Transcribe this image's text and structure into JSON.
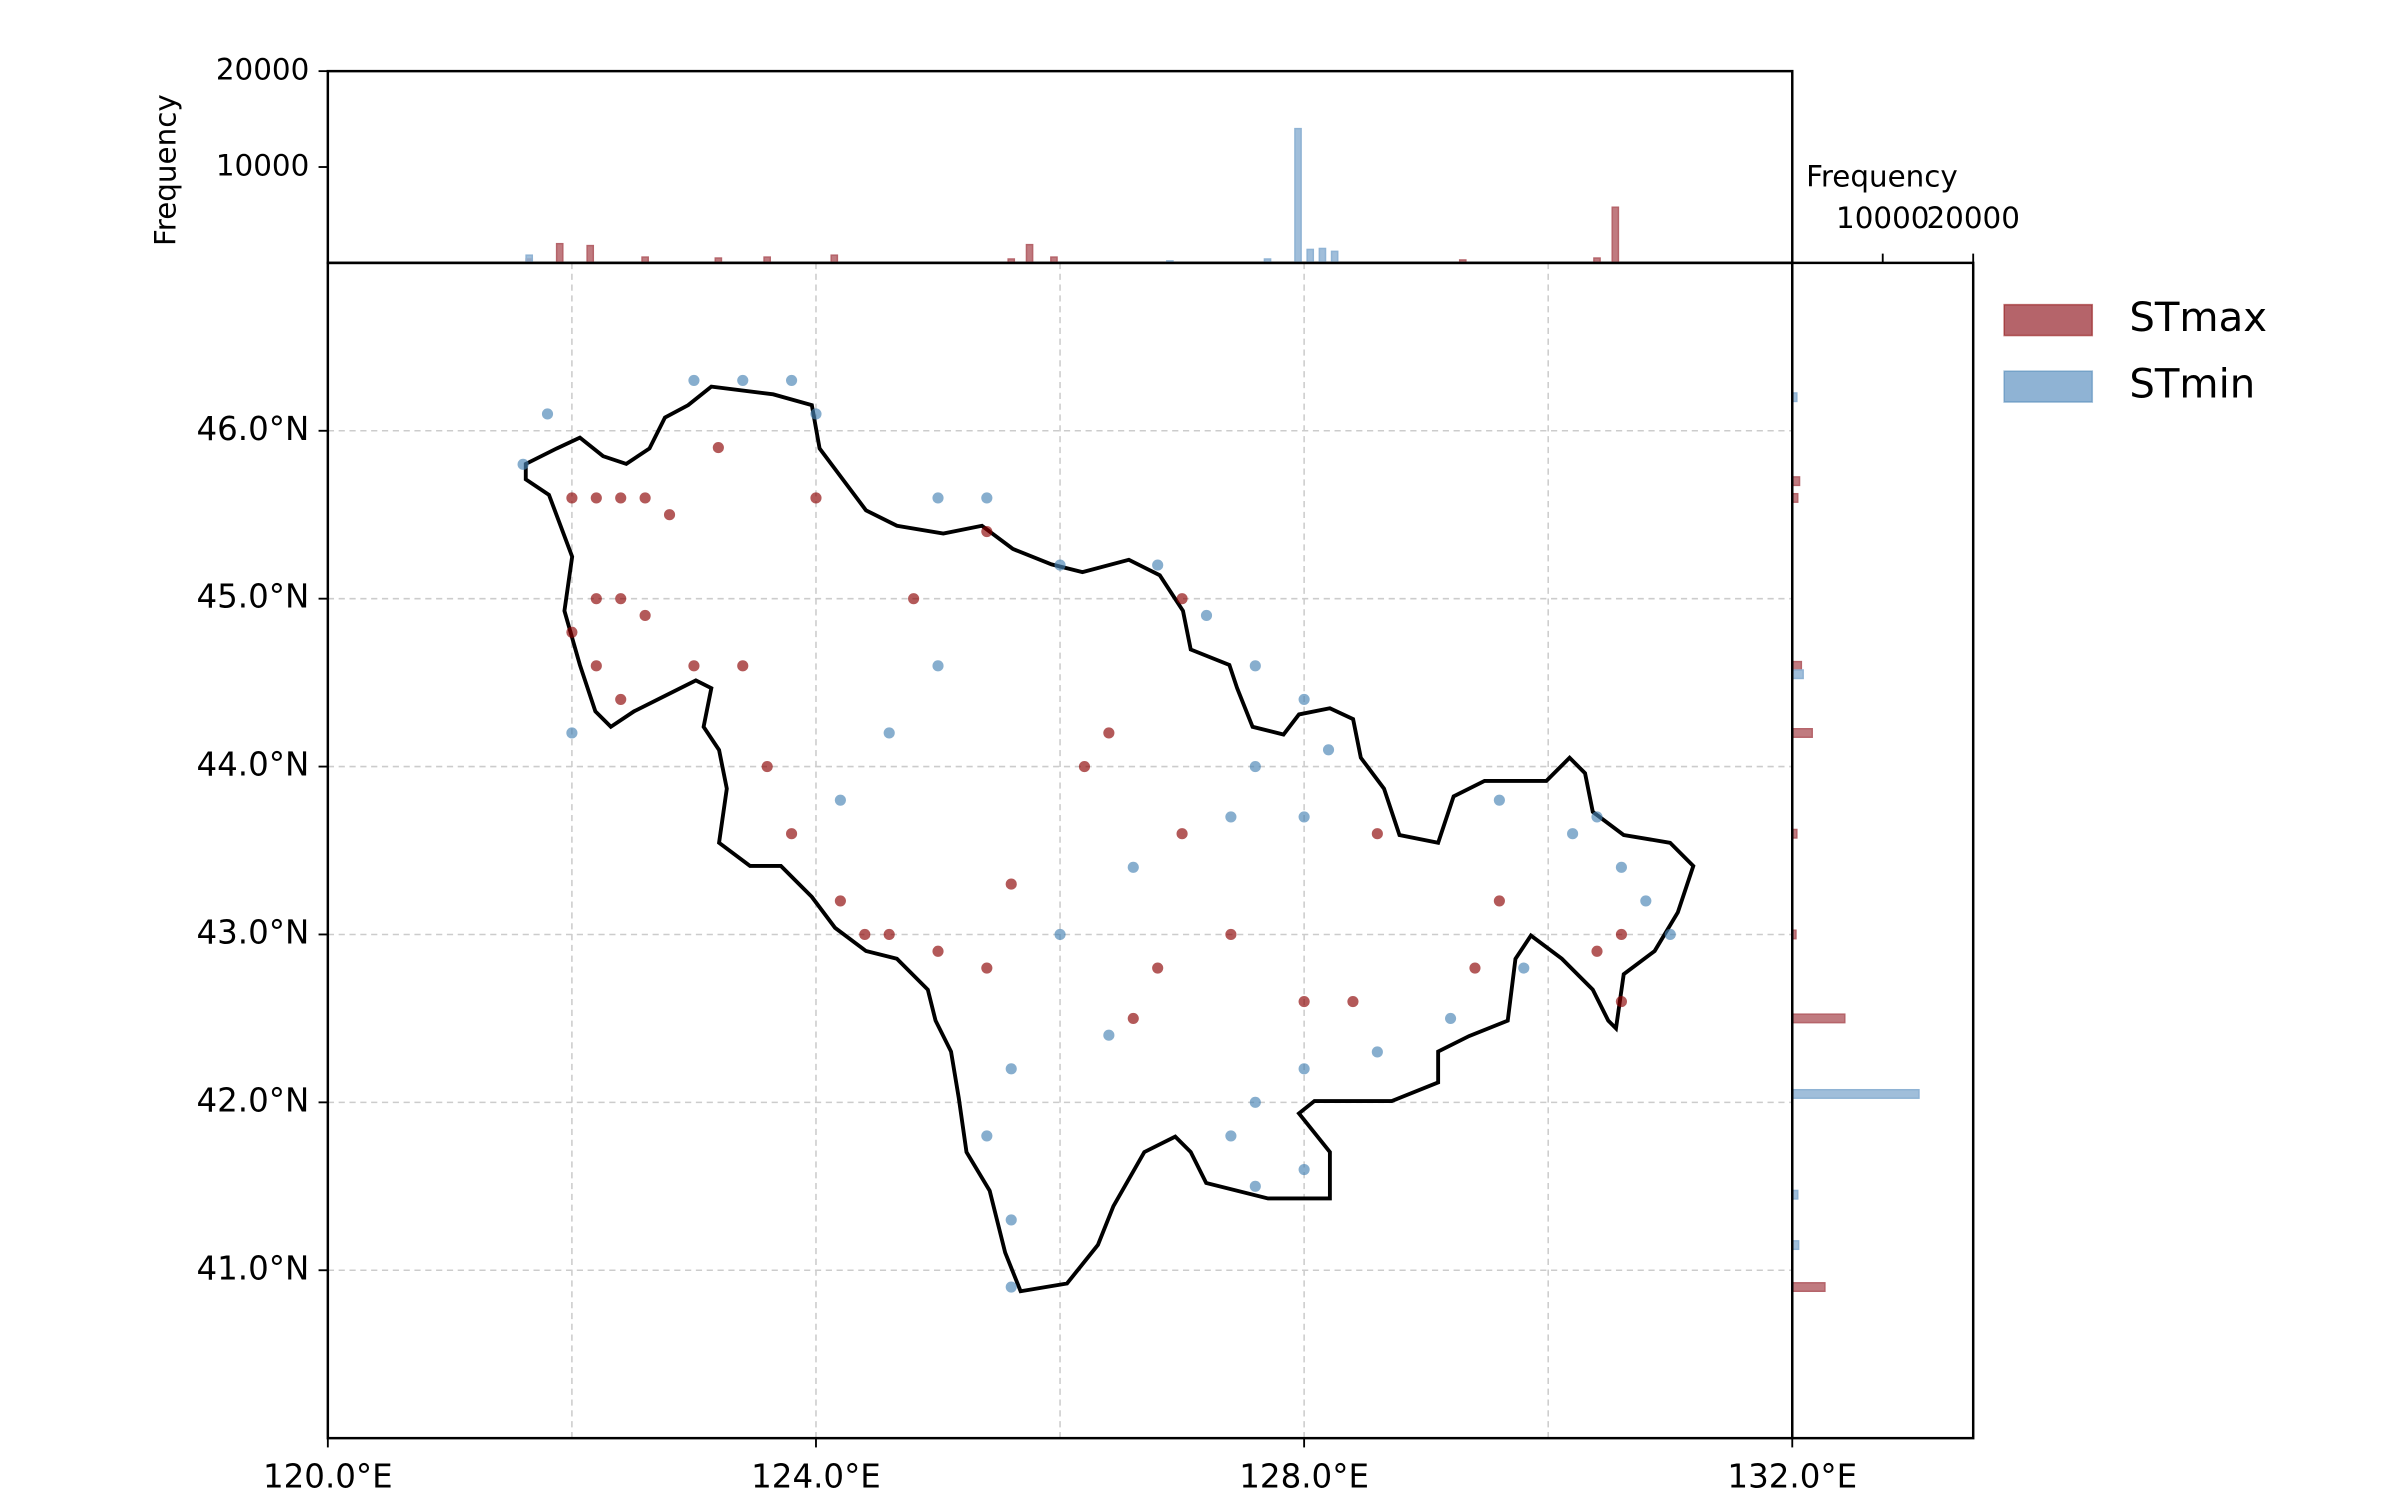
{
  "chart_data": [
    {
      "type": "scatter",
      "xlim": [
        120,
        132
      ],
      "ylim": [
        40,
        47
      ],
      "xticks": [
        {
          "value": 120,
          "label": "120.0°E"
        },
        {
          "value": 124,
          "label": "124.0°E"
        },
        {
          "value": 128,
          "label": "128.0°E"
        },
        {
          "value": 132,
          "label": "132.0°E"
        }
      ],
      "xgrid": [
        122,
        124,
        126,
        128,
        130
      ],
      "yticks": [
        {
          "value": 41,
          "label": "41.0°N"
        },
        {
          "value": 42,
          "label": "42.0°N"
        },
        {
          "value": 43,
          "label": "43.0°N"
        },
        {
          "value": 44,
          "label": "44.0°N"
        },
        {
          "value": 45,
          "label": "45.0°N"
        },
        {
          "value": 46,
          "label": "46.0°N"
        }
      ],
      "grid": true,
      "legend": "upper right",
      "series": [
        {
          "name": "STmax",
          "color": "#8b0000",
          "x": [
            122.0,
            122.2,
            122.4,
            122.6,
            122.8,
            122.2,
            122.4,
            122.6,
            122.0,
            122.2,
            122.4,
            123.0,
            123.4,
            123.6,
            123.8,
            124.2,
            124.4,
            124.6,
            125.0,
            124.8,
            125.4,
            125.4,
            125.6,
            126.6,
            126.8,
            127.0,
            127.4,
            128.0,
            128.4,
            128.6,
            129.4,
            129.6,
            130.4,
            130.6,
            130.6,
            126.2,
            126.4,
            123.2,
            124.0,
            127.0
          ],
          "y": [
            45.6,
            45.6,
            45.6,
            45.6,
            45.5,
            45.0,
            45.0,
            44.9,
            44.8,
            44.6,
            44.4,
            44.6,
            44.6,
            44.0,
            43.6,
            43.2,
            43.0,
            43.0,
            42.9,
            45.0,
            45.4,
            42.8,
            43.3,
            42.5,
            42.8,
            43.6,
            43.0,
            42.6,
            42.6,
            43.6,
            42.8,
            43.2,
            42.9,
            42.6,
            43.0,
            44.0,
            44.2,
            45.9,
            45.6,
            45.0
          ]
        },
        {
          "name": "STmin",
          "color": "#4682b4",
          "x": [
            121.8,
            121.6,
            123.0,
            123.4,
            123.8,
            124.0,
            125.0,
            125.4,
            126.0,
            126.8,
            127.2,
            127.6,
            128.0,
            128.2,
            127.6,
            127.4,
            128.0,
            129.6,
            130.2,
            130.6,
            130.8,
            131.0,
            130.4,
            129.8,
            129.2,
            128.6,
            128.0,
            127.6,
            127.4,
            128.0,
            127.6,
            125.6,
            125.4,
            125.6,
            125.6,
            126.4,
            124.2,
            124.6,
            126.0,
            126.6,
            125.0,
            122.0
          ],
          "y": [
            46.1,
            45.8,
            46.3,
            46.3,
            46.3,
            46.1,
            45.6,
            45.6,
            45.2,
            45.2,
            44.9,
            44.6,
            44.4,
            44.1,
            44.0,
            43.7,
            43.7,
            43.8,
            43.6,
            43.4,
            43.2,
            43.0,
            43.7,
            42.8,
            42.5,
            42.3,
            42.2,
            42.0,
            41.8,
            41.6,
            41.5,
            42.2,
            41.8,
            41.3,
            40.9,
            42.4,
            43.8,
            44.2,
            43.0,
            43.4,
            44.6,
            44.2
          ]
        }
      ]
    },
    {
      "type": "histogram",
      "orientation": "vertical",
      "ylabel": "Frequency",
      "ylim": [
        0,
        20000
      ],
      "yticks": [
        10000,
        20000
      ],
      "bin_width": 0.05,
      "series": [
        {
          "color": "#b5646a",
          "x": [
            121.65,
            121.9,
            122.15,
            122.6,
            123.2,
            123.6,
            124.15,
            125.6,
            125.75,
            125.95,
            129.3,
            130.4,
            130.55
          ],
          "values": [
            400,
            2000,
            1800,
            600,
            500,
            600,
            800,
            400,
            1900,
            600,
            300,
            500,
            5800
          ]
        },
        {
          "color": "#8fb3d4",
          "x": [
            121.65,
            126.9,
            127.7,
            127.95,
            128.05,
            128.15,
            128.25
          ],
          "values": [
            800,
            200,
            400,
            14000,
            1400,
            1500,
            1200
          ]
        }
      ]
    },
    {
      "type": "histogram",
      "orientation": "horizontal",
      "xlabel": "Frequency",
      "xlim": [
        0,
        20000
      ],
      "xticks": [
        10000,
        20000
      ],
      "bin_width": 0.05,
      "series": [
        {
          "color": "#b5646a",
          "y": [
            45.7,
            45.6,
            44.6,
            44.2,
            43.6,
            43.0,
            42.5,
            40.9
          ],
          "values": [
            800,
            600,
            1000,
            2200,
            500,
            400,
            5800,
            3600
          ]
        },
        {
          "color": "#8fb3d4",
          "y": [
            46.2,
            44.55,
            42.05,
            41.45,
            41.15
          ],
          "values": [
            500,
            1200,
            14000,
            600,
            700
          ]
        }
      ]
    }
  ]
}
